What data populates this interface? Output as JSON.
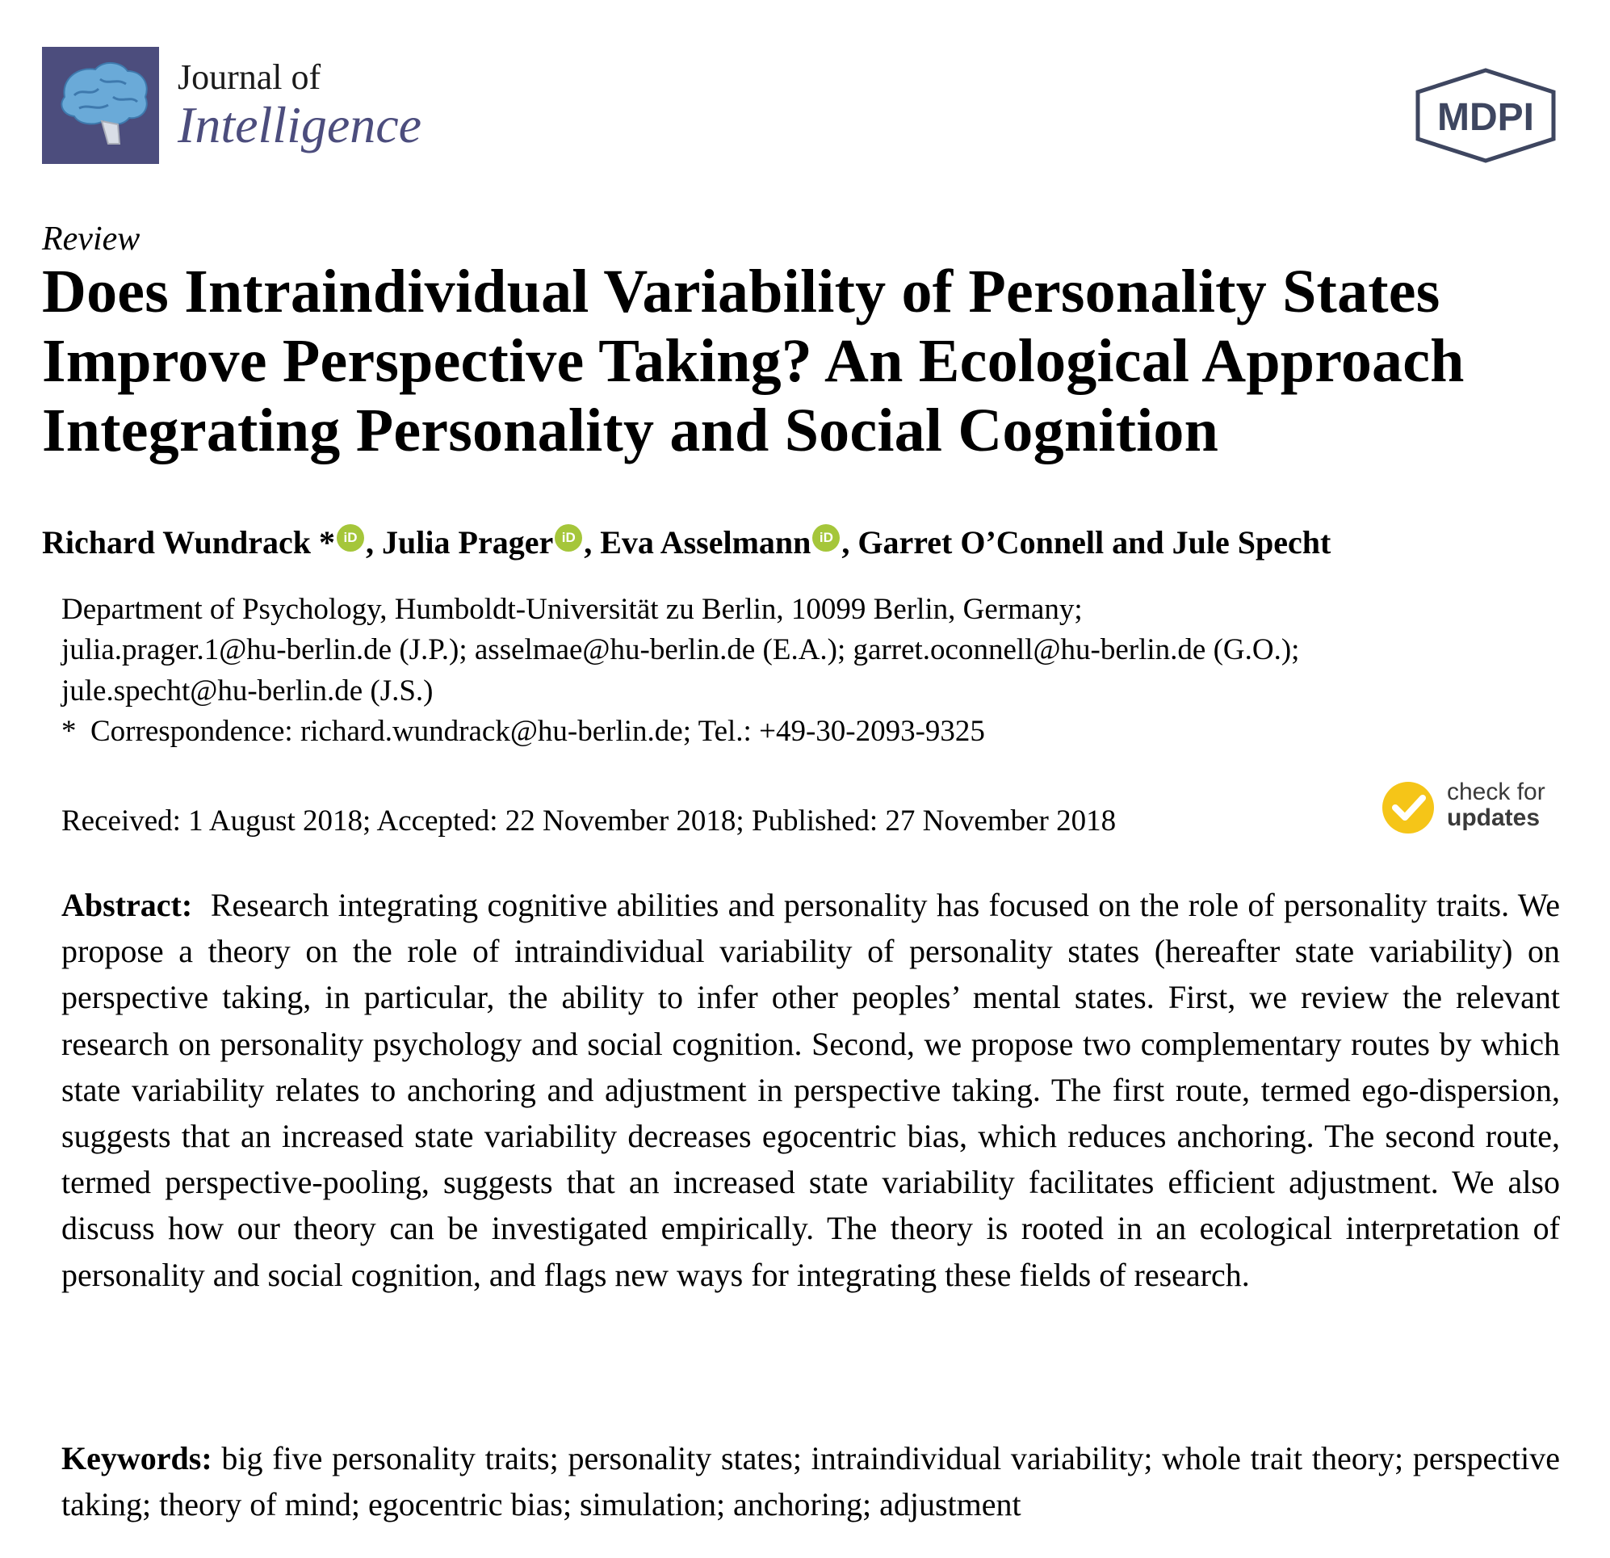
{
  "header": {
    "journal_prefix": "Journal of",
    "journal_name": "Intelligence",
    "publisher": "MDPI"
  },
  "article": {
    "type": "Review",
    "title": "Does Intraindividual Variability of Personality States Improve Perspective Taking? An Ecological Approach Integrating Personality and Social Cognition",
    "authors": [
      {
        "name": "Richard Wundrack *",
        "orcid": true,
        "sep": ", "
      },
      {
        "name": "Julia Prager",
        "orcid": true,
        "sep": ", "
      },
      {
        "name": "Eva Asselmann",
        "orcid": true,
        "sep": ", "
      },
      {
        "name": "Garret O’Connell and Jule Specht",
        "orcid": false,
        "sep": ""
      }
    ],
    "orcid_label": "iD",
    "affiliation_lines": [
      "Department of Psychology, Humboldt-Universität zu Berlin, 10099 Berlin, Germany;",
      "julia.prager.1@hu-berlin.de (J.P.); asselmae@hu-berlin.de (E.A.); garret.oconnell@hu-berlin.de (G.O.);",
      "jule.specht@hu-berlin.de (J.S.)"
    ],
    "correspondence_marker": "*",
    "correspondence": "Correspondence: richard.wundrack@hu-berlin.de; Tel.: +49-30-2093-9325",
    "dates": "Received: 1 August 2018; Accepted: 22 November 2018; Published: 27 November 2018",
    "check_updates": {
      "line1": "check for",
      "line2": "updates",
      "color": "#f5c518"
    },
    "abstract_label": "Abstract:",
    "abstract": "Research integrating cognitive abilities and personality has focused on the role of personality traits. We propose a theory on the role of intraindividual variability of personality states (hereafter state variability) on perspective taking, in particular, the ability to infer other peoples’ mental states. First, we review the relevant research on personality psychology and social cognition. Second, we propose two complementary routes by which state variability relates to anchoring and adjustment in perspective taking. The first route, termed ego-dispersion, suggests that an increased state variability decreases egocentric bias, which reduces anchoring. The second route, termed perspective-pooling, suggests that an increased state variability facilitates efficient adjustment. We also discuss how our theory can be investigated empirically. The theory is rooted in an ecological interpretation of personality and social cognition, and flags new ways for integrating these fields of research.",
    "keywords_label": "Keywords:",
    "keywords": "big five personality traits; personality states; intraindividual variability; whole trait theory; perspective taking; theory of mind; egocentric bias; simulation; anchoring; adjustment"
  },
  "colors": {
    "journal_accent": "#4c4d7d",
    "orcid": "#a5c63a",
    "publisher_logo": "#3e4660"
  }
}
